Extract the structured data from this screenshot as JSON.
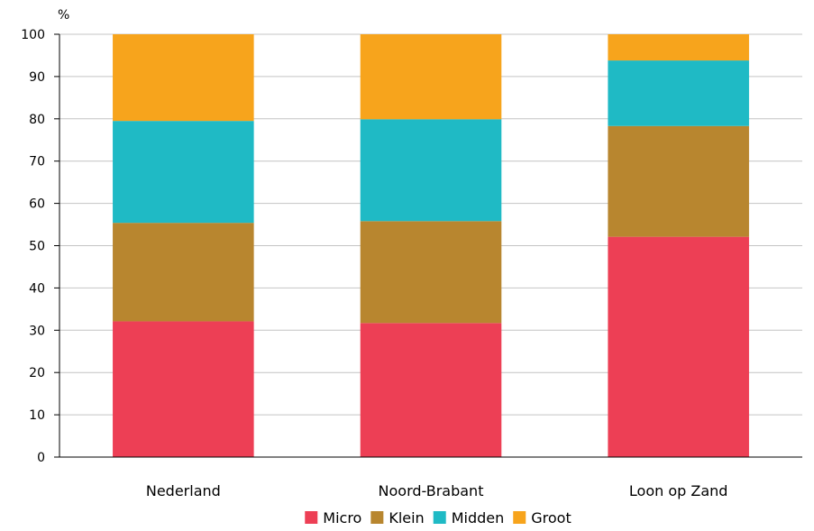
{
  "chart_data": {
    "type": "bar",
    "stacked": true,
    "title": "",
    "xlabel": "",
    "ylabel": "%",
    "ylim": [
      0,
      100
    ],
    "yticks": [
      0,
      10,
      20,
      30,
      40,
      50,
      60,
      70,
      80,
      90,
      100
    ],
    "grid": true,
    "legend_position": "bottom",
    "categories": [
      "Nederland",
      "Noord-Brabant",
      "Loon op Zand"
    ],
    "series": [
      {
        "name": "Micro",
        "color": "#ed3f55",
        "values": [
          32.1,
          31.7,
          52.1
        ]
      },
      {
        "name": "Klein",
        "color": "#b8862f",
        "values": [
          23.3,
          24.1,
          26.2
        ]
      },
      {
        "name": "Midden",
        "color": "#1fbac5",
        "values": [
          24.1,
          24.1,
          15.5
        ]
      },
      {
        "name": "Groot",
        "color": "#f7a41c",
        "values": [
          20.5,
          20.1,
          6.2
        ]
      }
    ]
  }
}
